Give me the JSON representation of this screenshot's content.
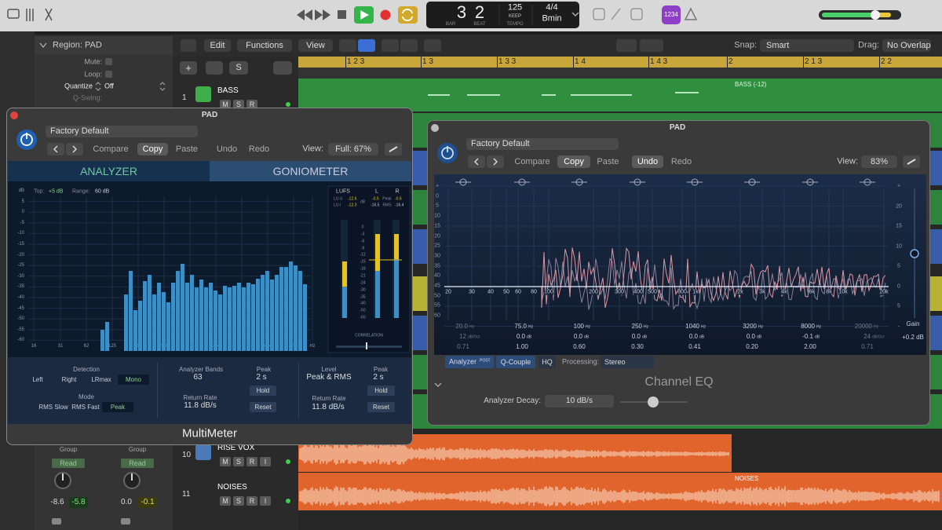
{
  "transport": {
    "bar": "3",
    "beat": "2",
    "bar_label": "BAR",
    "beat_label": "BEAT",
    "tempo": "125",
    "tempo_mode": "KEEP",
    "tempo_label": "TEMPO",
    "signature": "4/4",
    "key": "Bmin",
    "count_in": "1234"
  },
  "toolbar": {
    "edit": "Edit",
    "functions": "Functions",
    "view": "View",
    "snap_label": "Snap:",
    "snap": "Smart",
    "drag_label": "Drag:",
    "drag": "No Overlap"
  },
  "inspector": {
    "region": "Region: PAD",
    "mute": "Mute:",
    "loop": "Loop:",
    "quantize": "Quantize",
    "quantize_value": "Off",
    "q_swing": "Q-Swing:"
  },
  "track_header_buttons": [
    "+",
    "S"
  ],
  "ruler": [
    "1 2 3",
    "1 3",
    "1 3 3",
    "1 4",
    "1 4 3",
    "2",
    "2 1 3",
    "2 2"
  ],
  "tracks": [
    {
      "number": "1",
      "name": "BASS",
      "buttons": [
        "M",
        "S",
        "R"
      ]
    },
    {
      "number": "10",
      "name": "RISE VOX",
      "buttons": [
        "M",
        "S",
        "R",
        "I"
      ]
    },
    {
      "number": "11",
      "name": "NOISES",
      "buttons": [
        "M",
        "S",
        "R",
        "I"
      ]
    }
  ],
  "regions": {
    "bass": "BASS (-12)",
    "noises": "NOISES"
  },
  "mixer": {
    "strips": [
      {
        "group": "Group",
        "automation": "Read",
        "left": "-8.6",
        "right": "-5.8"
      },
      {
        "group": "Group",
        "automation": "Read",
        "left": "0.0",
        "right": "-0.1"
      }
    ]
  },
  "multimeter": {
    "title": "PAD",
    "preset": "Factory Default",
    "buttons": [
      "Compare",
      "Copy",
      "Paste",
      "Undo",
      "Redo"
    ],
    "view_label": "View:",
    "view": "Full: 67%",
    "tabs": [
      "ANALYZER",
      "GONIOMETER"
    ],
    "top_label": "Top:",
    "top": "+5 dB",
    "range_label": "Range:",
    "range": "60 dB",
    "db_scale": [
      "dB",
      "5",
      "0",
      "-5",
      "-10",
      "-15",
      "-20",
      "-25",
      "-30",
      "-35",
      "-40",
      "-45",
      "-50",
      "-55",
      "-60"
    ],
    "freq_scale": [
      "16",
      "31",
      "62",
      "125",
      "250",
      "500",
      "1 k",
      "2 k",
      "4 k",
      "8 k",
      "16 k",
      "Hz"
    ],
    "meter": {
      "lufs": "LUFS",
      "l": "L",
      "r": "R",
      "lu_s": "LU-S",
      "lu_s_value": "-12.6",
      "lu_i": "LU-I",
      "lu_i_value": "-12.3",
      "db": "dB",
      "peak": "Peak",
      "peak_l": "-0.5",
      "peak_r": "-0.6",
      "rms": "RMS",
      "rms_l": "-16.5",
      "rms_r": "-16.4",
      "scale": [
        "0",
        "-3",
        "-6",
        "-9",
        "-12",
        "-15",
        "-18",
        "-21",
        "-24",
        "-30",
        "-35",
        "-40",
        "-50",
        "-60"
      ],
      "correlation": "CORRELATION"
    },
    "detection": {
      "label": "Detection",
      "options": [
        "Left",
        "Right",
        "LRmax",
        "Mono"
      ]
    },
    "mode": {
      "label": "Mode",
      "options": [
        "RMS Slow",
        "RMS Fast",
        "Peak"
      ]
    },
    "analyzer_bands_label": "Analyzer Bands",
    "analyzer_bands": "63",
    "peak_label": "Peak",
    "peak_hold": "2 s",
    "hold": "Hold",
    "return_rate_label": "Return Rate",
    "return_rate": "11.8 dB/s",
    "reset": "Reset",
    "level_label": "Level",
    "level": "Peak & RMS",
    "level_peak_label": "Peak",
    "level_peak_hold": "2 s",
    "level_hold": "Hold",
    "level_return_rate_label": "Return Rate",
    "level_return_rate": "11.8 dB/s",
    "level_reset": "Reset",
    "name": "MultiMeter"
  },
  "channel_eq": {
    "title": "PAD",
    "preset": "Factory Default",
    "buttons": [
      "Compare",
      "Copy",
      "Paste",
      "Undo",
      "Redo"
    ],
    "view_label": "View:",
    "view": "83%",
    "left_scale": [
      "+",
      "0",
      "5",
      "10",
      "15",
      "20",
      "25",
      "30",
      "35",
      "40",
      "45",
      "50",
      "55",
      "60"
    ],
    "right_scale": [
      "+",
      "20",
      "15",
      "10",
      "5",
      "0",
      "5",
      "-"
    ],
    "freq_scale": [
      "20",
      "30",
      "40",
      "50",
      "60",
      "80",
      "100",
      "200",
      "300",
      "400",
      "500",
      "800",
      "1k",
      "2k",
      "3k",
      "4k",
      "6k",
      "8k",
      "10k",
      "20k"
    ],
    "bands": [
      {
        "freq": "20.0",
        "freq_unit": "Hz",
        "gain": "12",
        "gain_unit": "dB/Oct",
        "q": "0.71"
      },
      {
        "freq": "75.0",
        "freq_unit": "Hz",
        "gain": "0.0",
        "gain_unit": "dB",
        "q": "1.00"
      },
      {
        "freq": "100",
        "freq_unit": "Hz",
        "gain": "0.0",
        "gain_unit": "dB",
        "q": "0.60"
      },
      {
        "freq": "250",
        "freq_unit": "Hz",
        "gain": "0.0",
        "gain_unit": "dB",
        "q": "0.30"
      },
      {
        "freq": "1040",
        "freq_unit": "Hz",
        "gain": "0.0",
        "gain_unit": "dB",
        "q": "0.41"
      },
      {
        "freq": "3200",
        "freq_unit": "Hz",
        "gain": "0.0",
        "gain_unit": "dB",
        "q": "0.20"
      },
      {
        "freq": "8000",
        "freq_unit": "Hz",
        "gain": "-0.1",
        "gain_unit": "dB",
        "q": "2.00"
      },
      {
        "freq": "20000",
        "freq_unit": "Hz",
        "gain": "24",
        "gain_unit": "dB/Oct",
        "q": "0.71"
      }
    ],
    "gain_label": "Gain",
    "gain": "+0.2 dB",
    "analyzer": "Analyzer",
    "analyzer_mode": "POST",
    "q_couple": "Q-Couple",
    "hq": "HQ",
    "processing_label": "Processing:",
    "processing": "Stereo",
    "name": "Channel EQ",
    "decay_label": "Analyzer Decay:",
    "decay": "10 dB/s"
  }
}
